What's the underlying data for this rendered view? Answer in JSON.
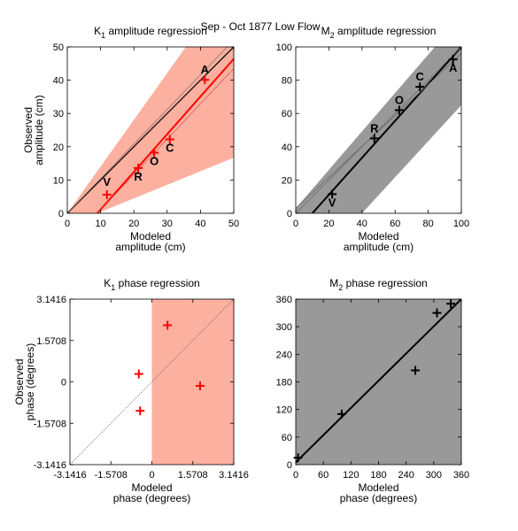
{
  "suptitle": "Sep - Oct 1877  Low Flow",
  "colors": {
    "red": "#ff0000",
    "salmon": "#fcb09f",
    "gray": "#999999",
    "black": "#000000"
  },
  "chart_data": [
    {
      "id": "k1amp",
      "type": "scatter",
      "title": {
        "pre": "K",
        "sub": "1",
        "post": " amplitude regression"
      },
      "xlabel": [
        "Modeled",
        "amplitude (cm)"
      ],
      "ylabel": [
        "Observed",
        "amplitude (cm)"
      ],
      "xlim": [
        0,
        50
      ],
      "ylim": [
        0,
        50
      ],
      "xticks": [
        0,
        10,
        20,
        30,
        40,
        50
      ],
      "xticklabels": [
        "0",
        "10",
        "20",
        "30",
        "40",
        "50"
      ],
      "yticks": [
        0,
        10,
        20,
        30,
        40,
        50
      ],
      "yticklabels": [
        "0",
        "10",
        "20",
        "30",
        "40",
        "50"
      ],
      "marker_color": "#ff0000",
      "band_color": "#fcb09f",
      "band": [
        [
          0,
          0
        ],
        [
          50,
          70.2
        ],
        [
          50,
          16.7
        ],
        [
          9,
          0
        ]
      ],
      "lines": [
        {
          "name": "",
          "points": [
            [
              0,
              0
            ],
            [
              50,
              50
            ]
          ],
          "color": "#000000",
          "width": 1.2
        },
        {
          "name": "",
          "points": [
            [
              9,
              0
            ],
            [
              50,
              46.4
            ]
          ],
          "color": "#ff0000",
          "width": 2
        },
        {
          "name": "",
          "points": [
            [
              0,
              0
            ],
            [
              50,
              52
            ]
          ],
          "color": "#666666",
          "width": 0.6
        },
        {
          "name": "",
          "points": [
            [
              9,
              0
            ],
            [
              50,
              43.5
            ]
          ],
          "color": "#cc4444",
          "width": 0.6
        }
      ],
      "points": [
        {
          "label": "V",
          "x": 11.9,
          "y": 5.6,
          "ldx": 0,
          "ldy": -10
        },
        {
          "label": "R",
          "x": 21.3,
          "y": 13.6,
          "ldx": 0,
          "ldy": 14
        },
        {
          "label": "O",
          "x": 26.1,
          "y": 18.2,
          "ldx": 0,
          "ldy": 14
        },
        {
          "label": "C",
          "x": 30.8,
          "y": 22.2,
          "ldx": 0,
          "ldy": 14
        },
        {
          "label": "A",
          "x": 41.3,
          "y": 40.1,
          "ldx": 0,
          "ldy": -7
        }
      ]
    },
    {
      "id": "m2amp",
      "type": "scatter",
      "title": {
        "pre": "M",
        "sub": "2",
        "post": " amplitude regression"
      },
      "xlabel": [
        "Modeled",
        "amplitude (cm)"
      ],
      "ylabel": [],
      "xlim": [
        0,
        100
      ],
      "ylim": [
        0,
        100
      ],
      "xticks": [
        0,
        20,
        40,
        60,
        80,
        100
      ],
      "xticklabels": [
        "0",
        "20",
        "40",
        "60",
        "80",
        "100"
      ],
      "yticks": [
        0,
        20,
        40,
        60,
        80,
        100
      ],
      "yticklabels": [
        "0",
        "20",
        "40",
        "60",
        "80",
        "100"
      ],
      "marker_color": "#000000",
      "band_color": "#999999",
      "band": [
        [
          0,
          0
        ],
        [
          0,
          3
        ],
        [
          84,
          100
        ],
        [
          100,
          100
        ],
        [
          100,
          65
        ],
        [
          40,
          0
        ]
      ],
      "lines": [
        {
          "name": "",
          "points": [
            [
              10,
              0
            ],
            [
              100,
              100
            ]
          ],
          "color": "#000000",
          "width": 2
        },
        {
          "name": "",
          "points": [
            [
              0,
              3
            ],
            [
              100,
              96
            ]
          ],
          "color": "#666666",
          "width": 0.7
        },
        {
          "name": "",
          "points": [
            [
              0,
              0
            ],
            [
              100,
              100
            ]
          ],
          "color": "#666666",
          "width": 0.7
        }
      ],
      "points": [
        {
          "label": "V",
          "x": 22,
          "y": 11.5,
          "ldx": 0,
          "ldy": 14
        },
        {
          "label": "R",
          "x": 47.5,
          "y": 45,
          "ldx": 0,
          "ldy": -7
        },
        {
          "label": "O",
          "x": 62.5,
          "y": 62,
          "ldx": 0,
          "ldy": -7
        },
        {
          "label": "C",
          "x": 75,
          "y": 76,
          "ldx": 0,
          "ldy": -7
        },
        {
          "label": "A",
          "x": 95,
          "y": 92.5,
          "ldx": 0,
          "ldy": 14
        }
      ]
    },
    {
      "id": "k1phase",
      "type": "scatter",
      "title": {
        "pre": "K",
        "sub": "1",
        "post": " phase regression"
      },
      "xlabel": [
        "Modeled",
        "phase (degrees)"
      ],
      "ylabel": [
        "Observed",
        "phase (degrees)"
      ],
      "xlim": [
        -3.1416,
        3.1416
      ],
      "ylim": [
        -3.1416,
        3.1416
      ],
      "xticks": [
        -3.1416,
        -1.5708,
        0,
        1.5708,
        3.1416
      ],
      "xticklabels": [
        "-3.1416",
        "-1.5708",
        "0",
        "1.5708",
        "3.1416"
      ],
      "yticks": [
        -3.1416,
        -1.5708,
        0,
        1.5708,
        3.1416
      ],
      "yticklabels": [
        "-3.1416",
        "-1.5708",
        "0",
        "1.5708",
        "3.1416"
      ],
      "marker_color": "#ff0000",
      "band_color": "#fcb09f",
      "band": [
        [
          0,
          -3.1416
        ],
        [
          3.1416,
          -3.1416
        ],
        [
          3.1416,
          3.1416
        ],
        [
          0,
          3.1416
        ]
      ],
      "lines": [
        {
          "name": "",
          "points": [
            [
              -3.1416,
              -3.1416
            ],
            [
              3.1416,
              3.1416
            ]
          ],
          "color": "#666666",
          "width": 0.7,
          "dash": "1.5,1.5"
        }
      ],
      "points": [
        {
          "label": "",
          "x": -0.5,
          "y": 0.3
        },
        {
          "label": "",
          "x": -0.45,
          "y": -1.1
        },
        {
          "label": "",
          "x": 0.6,
          "y": 2.15
        },
        {
          "label": "",
          "x": 1.85,
          "y": -0.15
        }
      ]
    },
    {
      "id": "m2phase",
      "type": "scatter",
      "title": {
        "pre": "M",
        "sub": "2",
        "post": " phase regression"
      },
      "xlabel": [
        "Modeled",
        "phase (degrees)"
      ],
      "ylabel": [],
      "xlim": [
        0,
        360
      ],
      "ylim": [
        0,
        360
      ],
      "xticks": [
        0,
        60,
        120,
        180,
        240,
        300,
        360
      ],
      "xticklabels": [
        "0",
        "60",
        "120",
        "180",
        "240",
        "300",
        "360"
      ],
      "yticks": [
        0,
        60,
        120,
        180,
        240,
        300,
        360
      ],
      "yticklabels": [
        "0",
        "60",
        "120",
        "180",
        "240",
        "300",
        "360"
      ],
      "marker_color": "#000000",
      "band_color": "#999999",
      "band": [
        [
          0,
          0
        ],
        [
          360,
          0
        ],
        [
          360,
          360
        ],
        [
          0,
          360
        ]
      ],
      "lines": [
        {
          "name": "",
          "points": [
            [
              0,
              5
            ],
            [
              360,
              360
            ]
          ],
          "color": "#000000",
          "width": 2
        }
      ],
      "points": [
        {
          "label": "",
          "x": 5,
          "y": 15
        },
        {
          "label": "",
          "x": 100,
          "y": 110
        },
        {
          "label": "",
          "x": 260,
          "y": 205
        },
        {
          "label": "",
          "x": 307,
          "y": 330
        },
        {
          "label": "",
          "x": 337,
          "y": 350
        }
      ]
    }
  ]
}
